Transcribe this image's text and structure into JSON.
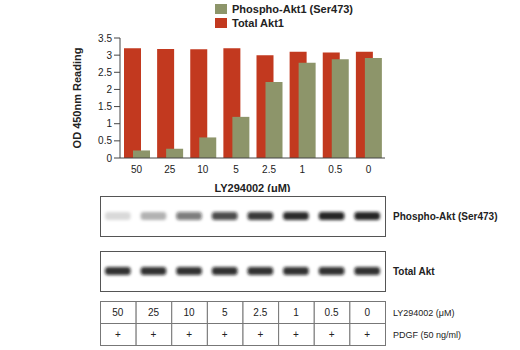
{
  "chart_data": {
    "type": "bar",
    "categories": [
      "50",
      "25",
      "10",
      "5",
      "2.5",
      "1",
      "0.5",
      "0"
    ],
    "series": [
      {
        "name": "Phospho-Akt1 (Ser473)",
        "color": "#8d956a",
        "values": [
          0.22,
          0.27,
          0.6,
          1.2,
          2.22,
          2.78,
          2.88,
          2.92
        ]
      },
      {
        "name": "Total Akt1",
        "color": "#c2391f",
        "values": [
          3.2,
          3.18,
          3.17,
          3.2,
          3.0,
          3.1,
          3.08,
          3.1
        ]
      }
    ],
    "x_label": "LY294002  (μM)",
    "y_label": "OD 450nm Reading",
    "ylim": [
      0,
      3.5
    ],
    "yticks": [
      0,
      0.5,
      1,
      1.5,
      2,
      2.5,
      3,
      3.5
    ],
    "legend": "top"
  },
  "blots": [
    {
      "label": "Phospho-Akt (Ser473)",
      "relative_signal": [
        0.15,
        0.3,
        0.55,
        0.75,
        0.82,
        0.88,
        0.9,
        0.9
      ]
    },
    {
      "label": "Total Akt",
      "relative_signal": [
        0.85,
        0.85,
        0.85,
        0.85,
        0.85,
        0.85,
        0.85,
        0.85
      ]
    }
  ],
  "table": {
    "rows": [
      {
        "label": "LY294002 (μM)",
        "cells": [
          "50",
          "25",
          "10",
          "5",
          "2.5",
          "1",
          "0.5",
          "0"
        ]
      },
      {
        "label": "PDGF (50 ng/ml)",
        "cells": [
          "+",
          "+",
          "+",
          "+",
          "+",
          "+",
          "+",
          "+"
        ]
      }
    ]
  }
}
